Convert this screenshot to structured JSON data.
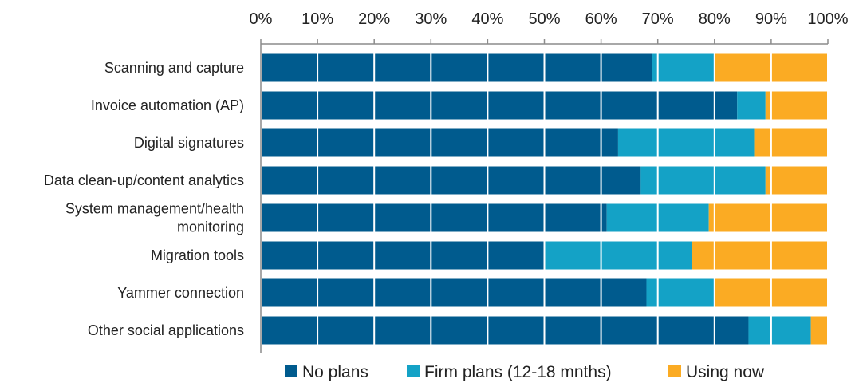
{
  "chart_data": {
    "type": "bar",
    "orientation": "horizontal",
    "stacked": true,
    "x_ticks": [
      "0%",
      "10%",
      "20%",
      "30%",
      "40%",
      "50%",
      "60%",
      "70%",
      "80%",
      "90%",
      "100%"
    ],
    "xlim": [
      0,
      100
    ],
    "x_axis_position": "top",
    "grid": true,
    "legend_position": "bottom",
    "categories": [
      [
        "Scanning and capture"
      ],
      [
        "Invoice automation (AP)"
      ],
      [
        "Digital signatures"
      ],
      [
        "Data clean-up/content analytics"
      ],
      [
        "System management/health",
        "monitoring"
      ],
      [
        "Migration tools"
      ],
      [
        "Yammer connection"
      ],
      [
        "Other social applications"
      ]
    ],
    "series": [
      {
        "name": "No plans",
        "color": "#005b8e",
        "values": [
          69,
          84,
          63,
          67,
          61,
          50,
          68,
          86
        ]
      },
      {
        "name": "Firm plans (12-18 mnths)",
        "color": "#14a2c6",
        "values": [
          11,
          5,
          24,
          22,
          18,
          26,
          12,
          11
        ]
      },
      {
        "name": "Using now",
        "color": "#fbab23",
        "values": [
          20,
          11,
          13,
          11,
          21,
          24,
          20,
          3
        ]
      }
    ]
  }
}
